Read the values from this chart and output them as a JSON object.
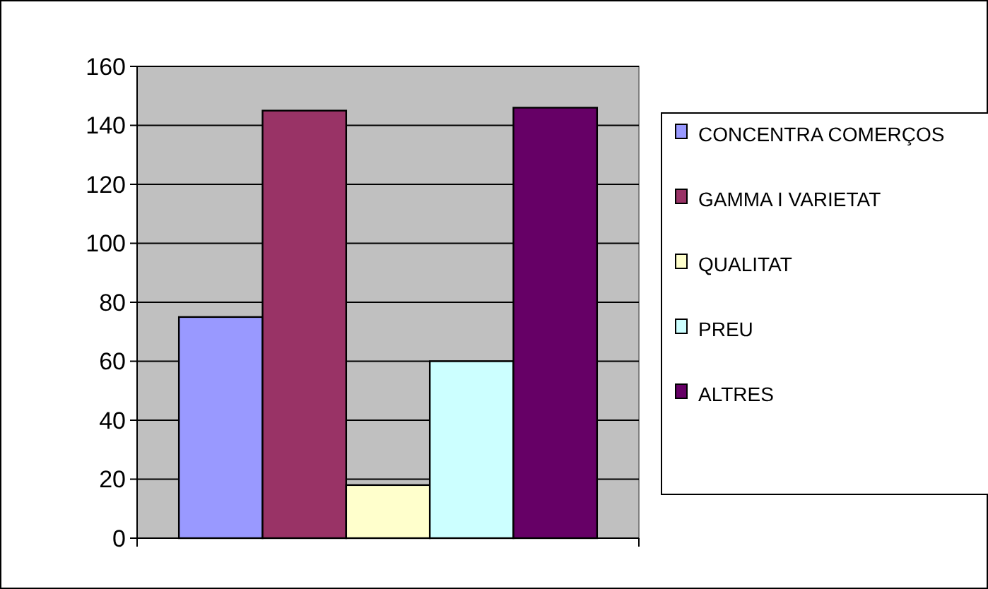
{
  "chart_data": {
    "type": "bar",
    "categories": [
      null
    ],
    "series": [
      {
        "name": "CONCENTRA COMERÇOS",
        "color": "#9999ff",
        "values": [
          75
        ]
      },
      {
        "name": "GAMMA I VARIETAT",
        "color": "#993366",
        "values": [
          145
        ]
      },
      {
        "name": "QUALITAT",
        "color": "#ffffcc",
        "values": [
          18
        ]
      },
      {
        "name": "PREU",
        "color": "#ccffff",
        "values": [
          60
        ]
      },
      {
        "name": "ALTRES",
        "color": "#660066",
        "values": [
          146
        ]
      }
    ],
    "ylim": [
      0,
      160
    ],
    "yticks": [
      0,
      20,
      40,
      60,
      80,
      100,
      120,
      140,
      160
    ],
    "grid": "y",
    "legend": "right"
  }
}
